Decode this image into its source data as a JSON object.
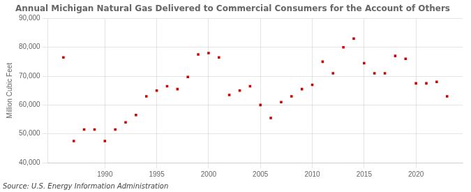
{
  "chart_data": {
    "type": "scatter",
    "title": "Annual Michigan Natural Gas Delivered to Commercial Consumers for the Account of Others",
    "ylabel": "Million Cubic Feet",
    "annotations": [
      "Source: U.S. Energy Information Administration"
    ],
    "x": [
      1986,
      1987,
      1988,
      1989,
      1990,
      1991,
      1992,
      1993,
      1994,
      1995,
      1996,
      1997,
      1998,
      1999,
      2000,
      2001,
      2002,
      2003,
      2004,
      2005,
      2006,
      2007,
      2008,
      2009,
      2010,
      2011,
      2012,
      2013,
      2014,
      2015,
      2016,
      2017,
      2018,
      2019,
      2020,
      2021,
      2022,
      2023
    ],
    "values": [
      76500,
      47500,
      51500,
      51500,
      47500,
      51500,
      54000,
      56500,
      63000,
      65000,
      66500,
      65500,
      69700,
      77500,
      78000,
      76500,
      63500,
      65000,
      66500,
      60000,
      55500,
      61000,
      63000,
      65500,
      67000,
      75000,
      71000,
      80000,
      83000,
      74500,
      71000,
      71000,
      77000,
      76000,
      67500,
      67500,
      68000,
      63000
    ],
    "color": "#cc0000",
    "marker": "square",
    "xlim": [
      1984.5,
      2024.5
    ],
    "xticks": [
      1990,
      1995,
      2000,
      2005,
      2010,
      2015,
      2020
    ],
    "ylim": [
      40000,
      90000
    ],
    "yticks": [
      {
        "value": 40000,
        "label": "40,000"
      },
      {
        "value": 50000,
        "label": "50,000"
      },
      {
        "value": 60000,
        "label": "60,000"
      },
      {
        "value": 70000,
        "label": "70,000"
      },
      {
        "value": 80000,
        "label": "80,000"
      },
      {
        "value": 90000,
        "label": "90,000"
      }
    ],
    "grid": true
  }
}
